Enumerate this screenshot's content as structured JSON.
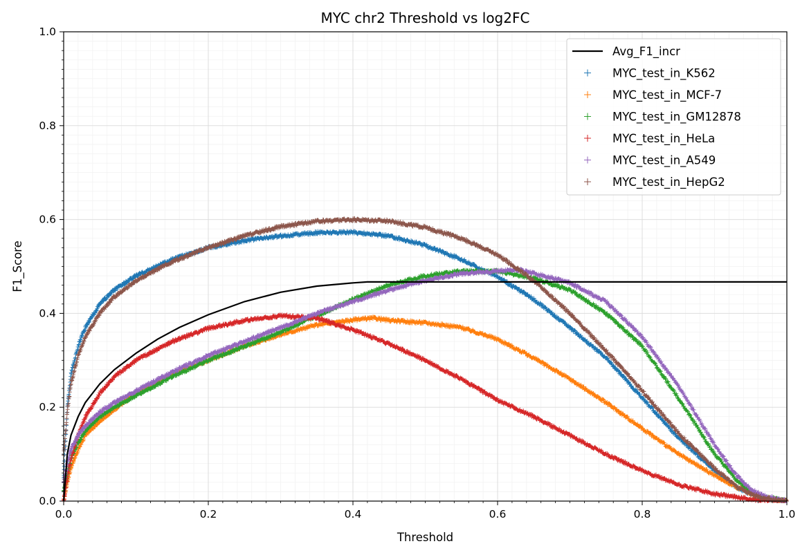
{
  "chart_data": {
    "type": "line",
    "title": "MYC chr2 Threshold vs log2FC",
    "xlabel": "Threshold",
    "ylabel": "F1_Score",
    "xlim": [
      0,
      1
    ],
    "ylim": [
      0,
      1
    ],
    "xticks": [
      "0.0",
      "0.2",
      "0.4",
      "0.6",
      "0.8",
      "1.0"
    ],
    "yticks": [
      "0.0",
      "0.2",
      "0.4",
      "0.6",
      "0.8",
      "1.0"
    ],
    "grid": true,
    "minor_grid": true,
    "legend_position": "top-right",
    "series": [
      {
        "name": "Avg_F1_incr",
        "style": "line",
        "color": "#000000",
        "x": [
          0,
          0.005,
          0.01,
          0.02,
          0.03,
          0.05,
          0.07,
          0.1,
          0.13,
          0.16,
          0.2,
          0.25,
          0.3,
          0.35,
          0.4,
          0.42,
          1.0
        ],
        "y": [
          0,
          0.1,
          0.14,
          0.18,
          0.21,
          0.25,
          0.28,
          0.315,
          0.345,
          0.37,
          0.397,
          0.425,
          0.445,
          0.458,
          0.465,
          0.467,
          0.467
        ]
      },
      {
        "name": "MYC_test_in_K562",
        "style": "plus",
        "color": "#1f77b4",
        "x": [
          0,
          0.005,
          0.01,
          0.02,
          0.03,
          0.05,
          0.07,
          0.1,
          0.15,
          0.2,
          0.25,
          0.3,
          0.35,
          0.4,
          0.45,
          0.5,
          0.55,
          0.6,
          0.65,
          0.7,
          0.75,
          0.8,
          0.85,
          0.9,
          0.93,
          0.95,
          0.97,
          1.0
        ],
        "y": [
          0.05,
          0.2,
          0.27,
          0.33,
          0.37,
          0.42,
          0.45,
          0.48,
          0.515,
          0.54,
          0.555,
          0.565,
          0.572,
          0.573,
          0.565,
          0.545,
          0.515,
          0.478,
          0.43,
          0.37,
          0.305,
          0.22,
          0.135,
          0.065,
          0.03,
          0.015,
          0.005,
          0
        ]
      },
      {
        "name": "MYC_test_in_MCF-7",
        "style": "plus",
        "color": "#ff7f0e",
        "x": [
          0,
          0.005,
          0.01,
          0.02,
          0.03,
          0.05,
          0.07,
          0.1,
          0.15,
          0.2,
          0.25,
          0.3,
          0.35,
          0.4,
          0.43,
          0.45,
          0.5,
          0.55,
          0.6,
          0.65,
          0.7,
          0.75,
          0.8,
          0.85,
          0.9,
          0.93,
          0.96,
          1.0
        ],
        "y": [
          0.0,
          0.04,
          0.07,
          0.11,
          0.14,
          0.17,
          0.195,
          0.23,
          0.27,
          0.3,
          0.33,
          0.355,
          0.375,
          0.386,
          0.39,
          0.385,
          0.38,
          0.37,
          0.345,
          0.305,
          0.26,
          0.21,
          0.155,
          0.1,
          0.055,
          0.03,
          0.01,
          0
        ]
      },
      {
        "name": "MYC_test_in_GM12878",
        "style": "plus",
        "color": "#2ca02c",
        "x": [
          0,
          0.005,
          0.01,
          0.02,
          0.03,
          0.05,
          0.07,
          0.1,
          0.15,
          0.2,
          0.25,
          0.3,
          0.35,
          0.4,
          0.45,
          0.5,
          0.55,
          0.6,
          0.65,
          0.7,
          0.75,
          0.8,
          0.85,
          0.9,
          0.93,
          0.95,
          0.97,
          1.0
        ],
        "y": [
          0.02,
          0.06,
          0.09,
          0.125,
          0.15,
          0.18,
          0.2,
          0.225,
          0.265,
          0.3,
          0.33,
          0.36,
          0.395,
          0.43,
          0.46,
          0.48,
          0.49,
          0.49,
          0.475,
          0.45,
          0.4,
          0.33,
          0.22,
          0.1,
          0.045,
          0.02,
          0.008,
          0
        ]
      },
      {
        "name": "MYC_test_in_HeLa",
        "style": "plus",
        "color": "#d62728",
        "x": [
          0,
          0.005,
          0.01,
          0.02,
          0.03,
          0.05,
          0.07,
          0.1,
          0.15,
          0.2,
          0.25,
          0.3,
          0.35,
          0.4,
          0.45,
          0.5,
          0.55,
          0.6,
          0.65,
          0.7,
          0.75,
          0.8,
          0.85,
          0.9,
          0.95,
          1.0
        ],
        "y": [
          0.0,
          0.05,
          0.09,
          0.14,
          0.18,
          0.23,
          0.265,
          0.3,
          0.34,
          0.368,
          0.385,
          0.395,
          0.39,
          0.365,
          0.335,
          0.3,
          0.26,
          0.215,
          0.18,
          0.14,
          0.1,
          0.065,
          0.035,
          0.015,
          0.004,
          0
        ]
      },
      {
        "name": "MYC_test_in_A549",
        "style": "plus",
        "color": "#9467bd",
        "x": [
          0,
          0.005,
          0.01,
          0.02,
          0.03,
          0.05,
          0.07,
          0.1,
          0.15,
          0.2,
          0.25,
          0.3,
          0.35,
          0.4,
          0.45,
          0.5,
          0.55,
          0.6,
          0.63,
          0.65,
          0.7,
          0.75,
          0.8,
          0.85,
          0.9,
          0.93,
          0.95,
          0.97,
          1.0
        ],
        "y": [
          0.04,
          0.08,
          0.11,
          0.14,
          0.16,
          0.19,
          0.21,
          0.235,
          0.275,
          0.31,
          0.34,
          0.37,
          0.4,
          0.425,
          0.45,
          0.47,
          0.485,
          0.49,
          0.493,
          0.485,
          0.465,
          0.425,
          0.35,
          0.245,
          0.12,
          0.055,
          0.025,
          0.01,
          0
        ]
      },
      {
        "name": "MYC_test_in_HepG2",
        "style": "plus",
        "color": "#8c564b",
        "x": [
          0,
          0.005,
          0.01,
          0.02,
          0.03,
          0.05,
          0.07,
          0.1,
          0.15,
          0.2,
          0.25,
          0.3,
          0.35,
          0.4,
          0.45,
          0.5,
          0.55,
          0.6,
          0.65,
          0.7,
          0.75,
          0.8,
          0.85,
          0.9,
          0.93,
          0.95,
          0.97,
          1.0
        ],
        "y": [
          0.1,
          0.19,
          0.25,
          0.31,
          0.35,
          0.4,
          0.435,
          0.47,
          0.51,
          0.54,
          0.565,
          0.585,
          0.596,
          0.6,
          0.597,
          0.583,
          0.56,
          0.525,
          0.47,
          0.4,
          0.32,
          0.235,
          0.145,
          0.07,
          0.032,
          0.015,
          0.005,
          0
        ]
      }
    ]
  }
}
